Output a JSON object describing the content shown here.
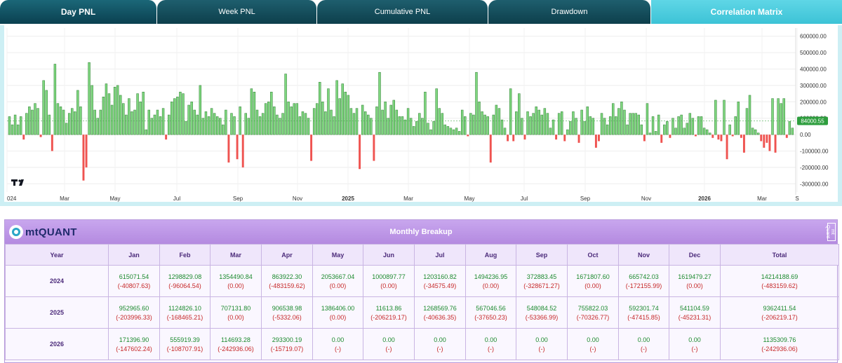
{
  "tabs": [
    {
      "label": "Day PNL",
      "active": true
    },
    {
      "label": "Week PNL"
    },
    {
      "label": "Cumulative PNL"
    },
    {
      "label": "Drawdown"
    },
    {
      "label": "Correlation Matrix"
    }
  ],
  "chart_data": {
    "type": "bar",
    "x_tick_labels": [
      "024",
      "Mar",
      "May",
      "Jul",
      "Sep",
      "Nov",
      "2025",
      "Mar",
      "May",
      "Jul",
      "Sep",
      "Nov",
      "2026",
      "Mar",
      "S"
    ],
    "y_tick_labels": [
      "600000.00",
      "500000.00",
      "400000.00",
      "300000.00",
      "200000.00",
      "100000.00",
      "0.00",
      "-100000.00",
      "-200000.00",
      "-300000.00"
    ],
    "ylim": [
      -350000,
      650000
    ],
    "last_value_label": "84000.55",
    "colors": {
      "positive": "#7ed67e",
      "negative": "#ef5350",
      "positive_border": "#2e7d32"
    },
    "values": [
      110000,
      60000,
      120000,
      60000,
      110000,
      -30000,
      130000,
      170000,
      150000,
      190000,
      160000,
      -15000,
      330000,
      270000,
      120000,
      -100000,
      430000,
      190000,
      170000,
      150000,
      70000,
      130000,
      160000,
      140000,
      270000,
      170000,
      -280000,
      -200000,
      440000,
      300000,
      150000,
      100000,
      150000,
      230000,
      310000,
      250000,
      180000,
      290000,
      300000,
      240000,
      190000,
      120000,
      220000,
      140000,
      150000,
      250000,
      200000,
      260000,
      30000,
      150000,
      100000,
      120000,
      150000,
      110000,
      160000,
      -30000,
      120000,
      200000,
      220000,
      230000,
      260000,
      250000,
      80000,
      180000,
      200000,
      150000,
      120000,
      300000,
      100000,
      140000,
      110000,
      160000,
      130000,
      110000,
      100000,
      60000,
      150000,
      -170000,
      130000,
      110000,
      -150000,
      170000,
      -200000,
      130000,
      100000,
      280000,
      260000,
      150000,
      110000,
      130000,
      190000,
      200000,
      260000,
      170000,
      120000,
      100000,
      130000,
      370000,
      200000,
      170000,
      190000,
      190000,
      110000,
      140000,
      130000,
      100000,
      -160000,
      160000,
      190000,
      320000,
      200000,
      140000,
      280000,
      150000,
      110000,
      330000,
      220000,
      310000,
      260000,
      240000,
      160000,
      130000,
      160000,
      -210000,
      180000,
      140000,
      120000,
      100000,
      -160000,
      170000,
      380000,
      150000,
      200000,
      100000,
      180000,
      210000,
      150000,
      110000,
      110000,
      90000,
      160000,
      100000,
      50000,
      80000,
      130000,
      100000,
      260000,
      70000,
      30000,
      80000,
      280000,
      160000,
      130000,
      60000,
      50000,
      40000,
      30000,
      40000,
      20000,
      150000,
      110000,
      -10000,
      130000,
      120000,
      380000,
      200000,
      140000,
      120000,
      110000,
      -170000,
      120000,
      180000,
      160000,
      90000,
      40000,
      -40000,
      280000,
      -40000,
      140000,
      250000,
      100000,
      -30000,
      140000,
      110000,
      130000,
      170000,
      150000,
      120000,
      160000,
      130000,
      40000,
      90000,
      -30000,
      130000,
      140000,
      -40000,
      30000,
      80000,
      140000,
      100000,
      -50000,
      150000,
      80000,
      170000,
      110000,
      100000,
      -80000,
      -40000,
      130000,
      100000,
      60000,
      110000,
      190000,
      110000,
      160000,
      200000,
      150000,
      60000,
      130000,
      130000,
      130000,
      120000,
      60000,
      -40000,
      190000,
      10000,
      110000,
      20000,
      120000,
      -50000,
      60000,
      80000,
      -20000,
      100000,
      40000,
      110000,
      120000,
      40000,
      70000,
      130000,
      100000,
      -10000,
      110000,
      110000,
      40000,
      30000,
      10000,
      -20000,
      210000,
      -30000,
      -40000,
      210000,
      -150000,
      60000,
      -10000,
      110000,
      200000,
      -20000,
      -110000,
      160000,
      240000,
      40000,
      30000,
      10000,
      -40000,
      -80000,
      -50000,
      -100000,
      220000,
      -110000,
      220000,
      190000,
      220000,
      -20000,
      80000,
      40000
    ]
  },
  "monthly": {
    "title": "Monthly Breakup",
    "logo_text": "mtQUANT",
    "side_mark": "mt Quant",
    "headers": [
      "Year",
      "Jan",
      "Feb",
      "Mar",
      "Apr",
      "May",
      "Jun",
      "Jul",
      "Aug",
      "Sep",
      "Oct",
      "Nov",
      "Dec",
      "Total"
    ],
    "rows": [
      {
        "year": "2024",
        "cells": [
          {
            "v": "615071.54",
            "d": "(-40807.63)"
          },
          {
            "v": "1298829.08",
            "d": "(-96064.54)"
          },
          {
            "v": "1354490.84",
            "d": "(0.00)"
          },
          {
            "v": "863922.30",
            "d": "(-483159.62)"
          },
          {
            "v": "2053667.04",
            "d": "(0.00)"
          },
          {
            "v": "1000897.77",
            "d": "(0.00)"
          },
          {
            "v": "1203160.82",
            "d": "(-34575.49)"
          },
          {
            "v": "1494236.95",
            "d": "(0.00)"
          },
          {
            "v": "372883.45",
            "d": "(-328671.27)"
          },
          {
            "v": "1671807.60",
            "d": "(0.00)"
          },
          {
            "v": "665742.03",
            "d": "(-172155.99)"
          },
          {
            "v": "1619479.27",
            "d": "(0.00)"
          },
          {
            "v": "14214188.69",
            "d": "(-483159.62)"
          }
        ]
      },
      {
        "year": "2025",
        "cells": [
          {
            "v": "952965.60",
            "d": "(-203996.33)"
          },
          {
            "v": "1124826.10",
            "d": "(-168465.21)"
          },
          {
            "v": "707131.80",
            "d": "(0.00)"
          },
          {
            "v": "906538.98",
            "d": "(-5332.06)"
          },
          {
            "v": "1386406.00",
            "d": "(0.00)"
          },
          {
            "v": "11613.86",
            "d": "(-206219.17)"
          },
          {
            "v": "1268569.76",
            "d": "(-40636.35)"
          },
          {
            "v": "567046.56",
            "d": "(-37650.23)"
          },
          {
            "v": "548084.52",
            "d": "(-53366.99)"
          },
          {
            "v": "755822.03",
            "d": "(-70326.77)"
          },
          {
            "v": "592301.74",
            "d": "(-47415.85)"
          },
          {
            "v": "541104.59",
            "d": "(-45231.31)"
          },
          {
            "v": "9362411.54",
            "d": "(-206219.17)"
          }
        ]
      },
      {
        "year": "2026",
        "cells": [
          {
            "v": "171396.90",
            "d": "(-147602.24)"
          },
          {
            "v": "555919.39",
            "d": "(-108707.91)"
          },
          {
            "v": "114693.28",
            "d": "(-242936.06)"
          },
          {
            "v": "293300.19",
            "d": "(-15719.07)"
          },
          {
            "v": "0.00",
            "d": "(-)"
          },
          {
            "v": "0.00",
            "d": "(-)"
          },
          {
            "v": "0.00",
            "d": "(-)"
          },
          {
            "v": "0.00",
            "d": "(-)"
          },
          {
            "v": "0.00",
            "d": "(-)"
          },
          {
            "v": "0.00",
            "d": "(-)"
          },
          {
            "v": "0.00",
            "d": "(-)"
          },
          {
            "v": "0.00",
            "d": "(-)"
          },
          {
            "v": "1135309.76",
            "d": "(-242936.06)"
          }
        ]
      }
    ]
  }
}
